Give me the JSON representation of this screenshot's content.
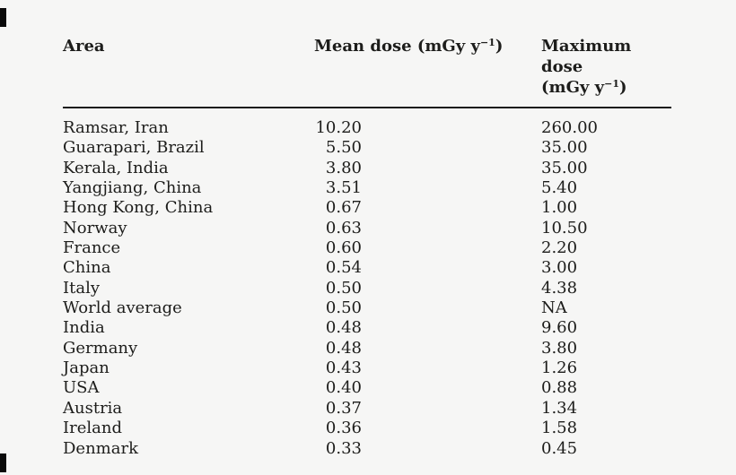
{
  "page": {
    "background_color": "#f6f6f5",
    "text_color": "#1d1d1b",
    "rule_color": "#1b1b19",
    "artifact_color": "#0a0a0a"
  },
  "table": {
    "columns": {
      "area": {
        "label": "Area"
      },
      "mean": {
        "prefix": "Mean dose (mGy y",
        "sup": "−1",
        "suffix": ")"
      },
      "max": {
        "line1": "Maximum dose",
        "line2_prefix": "(mGy y",
        "sup": "−1",
        "line2_suffix": ")"
      }
    },
    "rows": [
      {
        "area": "Ramsar, Iran",
        "mean": "10.20",
        "max": "260.00"
      },
      {
        "area": "Guarapari, Brazil",
        "mean": "5.50",
        "max": "35.00"
      },
      {
        "area": "Kerala, India",
        "mean": "3.80",
        "max": "35.00"
      },
      {
        "area": "Yangjiang, China",
        "mean": "3.51",
        "max": "5.40"
      },
      {
        "area": "Hong Kong, China",
        "mean": "0.67",
        "max": "1.00"
      },
      {
        "area": "Norway",
        "mean": "0.63",
        "max": "10.50"
      },
      {
        "area": "France",
        "mean": "0.60",
        "max": "2.20"
      },
      {
        "area": "China",
        "mean": "0.54",
        "max": "3.00"
      },
      {
        "area": "Italy",
        "mean": "0.50",
        "max": "4.38"
      },
      {
        "area": "World average",
        "mean": "0.50",
        "max": "NA"
      },
      {
        "area": "India",
        "mean": "0.48",
        "max": "9.60"
      },
      {
        "area": "Germany",
        "mean": "0.48",
        "max": "3.80"
      },
      {
        "area": "Japan",
        "mean": "0.43",
        "max": "1.26"
      },
      {
        "area": "USA",
        "mean": "0.40",
        "max": "0.88"
      },
      {
        "area": "Austria",
        "mean": "0.37",
        "max": "1.34"
      },
      {
        "area": "Ireland",
        "mean": "0.36",
        "max": "1.58"
      },
      {
        "area": "Denmark",
        "mean": "0.33",
        "max": "0.45"
      }
    ]
  },
  "chart_data": {
    "type": "table",
    "title": "",
    "columns": [
      "Area",
      "Mean dose (mGy y-1)",
      "Maximum dose (mGy y-1)"
    ],
    "rows": [
      [
        "Ramsar, Iran",
        10.2,
        260.0
      ],
      [
        "Guarapari, Brazil",
        5.5,
        35.0
      ],
      [
        "Kerala, India",
        3.8,
        35.0
      ],
      [
        "Yangjiang, China",
        3.51,
        5.4
      ],
      [
        "Hong Kong, China",
        0.67,
        1.0
      ],
      [
        "Norway",
        0.63,
        10.5
      ],
      [
        "France",
        0.6,
        2.2
      ],
      [
        "China",
        0.54,
        3.0
      ],
      [
        "Italy",
        0.5,
        4.38
      ],
      [
        "World average",
        0.5,
        "NA"
      ],
      [
        "India",
        0.48,
        9.6
      ],
      [
        "Germany",
        0.48,
        3.8
      ],
      [
        "Japan",
        0.43,
        1.26
      ],
      [
        "USA",
        0.4,
        0.88
      ],
      [
        "Austria",
        0.37,
        1.34
      ],
      [
        "Ireland",
        0.36,
        1.58
      ],
      [
        "Denmark",
        0.33,
        0.45
      ]
    ]
  }
}
